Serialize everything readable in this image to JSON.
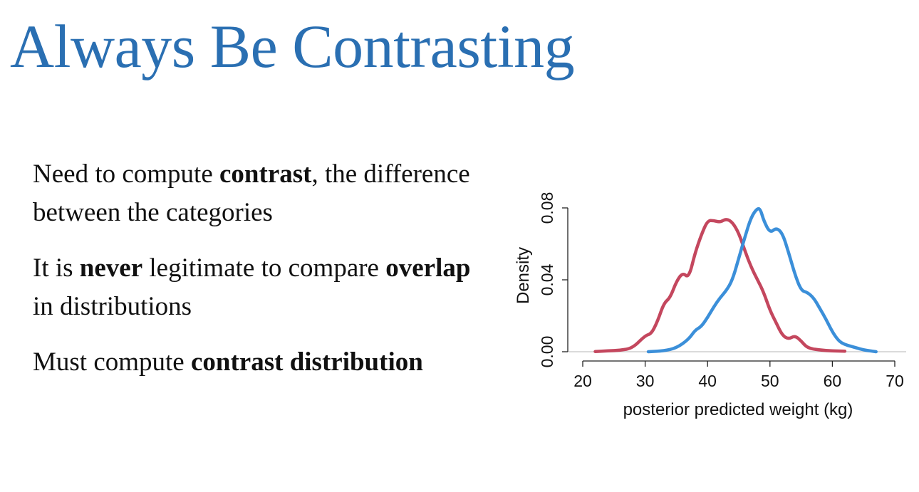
{
  "slide": {
    "title": "Always Be Contrasting",
    "title_color": "#2a6fb2",
    "bullets": [
      {
        "parts": [
          {
            "text": "Need to compute ",
            "bold": false
          },
          {
            "text": "contrast",
            "bold": true
          },
          {
            "text": ", the difference between the categories",
            "bold": false
          }
        ]
      },
      {
        "parts": [
          {
            "text": "It is ",
            "bold": false
          },
          {
            "text": "never",
            "bold": true
          },
          {
            "text": " legitimate to compare ",
            "bold": false
          },
          {
            "text": "overlap",
            "bold": true
          },
          {
            "text": " in distributions",
            "bold": false
          }
        ]
      },
      {
        "parts": [
          {
            "text": "Must compute ",
            "bold": false
          },
          {
            "text": "contrast distribution",
            "bold": true
          }
        ]
      }
    ]
  },
  "chart_data": {
    "type": "line",
    "xlabel": "posterior predicted weight (kg)",
    "ylabel": "Density",
    "xlim": [
      20,
      70
    ],
    "ylim": [
      0,
      0.08
    ],
    "x_ticks": [
      20,
      30,
      40,
      50,
      60,
      70
    ],
    "y_ticks": [
      0.0,
      0.04,
      0.08
    ],
    "x_tick_labels": [
      "20",
      "30",
      "40",
      "50",
      "60",
      "70"
    ],
    "y_tick_labels": [
      "0.00",
      "0.04",
      "0.08"
    ],
    "grid": false,
    "series": [
      {
        "color": "#c4475e",
        "points": [
          [
            22,
            0.0001
          ],
          [
            24,
            0.0005
          ],
          [
            26,
            0.0008
          ],
          [
            28,
            0.002
          ],
          [
            30,
            0.009
          ],
          [
            31,
            0.01
          ],
          [
            32,
            0.017
          ],
          [
            33,
            0.027
          ],
          [
            34,
            0.03
          ],
          [
            35,
            0.039
          ],
          [
            36,
            0.044
          ],
          [
            37,
            0.041
          ],
          [
            38,
            0.055
          ],
          [
            39,
            0.065
          ],
          [
            40,
            0.073
          ],
          [
            41,
            0.073
          ],
          [
            42,
            0.072
          ],
          [
            43,
            0.074
          ],
          [
            44,
            0.072
          ],
          [
            45,
            0.066
          ],
          [
            46,
            0.056
          ],
          [
            47,
            0.047
          ],
          [
            48,
            0.04
          ],
          [
            49,
            0.033
          ],
          [
            50,
            0.023
          ],
          [
            51,
            0.016
          ],
          [
            52,
            0.009
          ],
          [
            53,
            0.007
          ],
          [
            54,
            0.009
          ],
          [
            55,
            0.006
          ],
          [
            56,
            0.002
          ],
          [
            58,
            0.0009
          ],
          [
            60,
            0.0005
          ],
          [
            62,
            0.0003
          ]
        ]
      },
      {
        "color": "#3b8fd9",
        "points": [
          [
            30.5,
            0.0
          ],
          [
            33,
            0.0005
          ],
          [
            35,
            0.002
          ],
          [
            37,
            0.007
          ],
          [
            38,
            0.012
          ],
          [
            39,
            0.014
          ],
          [
            40,
            0.019
          ],
          [
            41,
            0.025
          ],
          [
            42,
            0.03
          ],
          [
            43,
            0.034
          ],
          [
            44,
            0.04
          ],
          [
            45,
            0.052
          ],
          [
            46,
            0.064
          ],
          [
            47,
            0.075
          ],
          [
            48,
            0.08
          ],
          [
            48.5,
            0.079
          ],
          [
            49,
            0.073
          ],
          [
            50,
            0.066
          ],
          [
            51,
            0.069
          ],
          [
            52,
            0.066
          ],
          [
            53,
            0.055
          ],
          [
            54,
            0.043
          ],
          [
            55,
            0.034
          ],
          [
            56,
            0.033
          ],
          [
            57,
            0.03
          ],
          [
            58,
            0.024
          ],
          [
            59,
            0.018
          ],
          [
            60,
            0.011
          ],
          [
            61,
            0.006
          ],
          [
            62,
            0.004
          ],
          [
            63,
            0.003
          ],
          [
            64,
            0.002
          ],
          [
            65,
            0.001
          ],
          [
            67,
            0.0
          ]
        ]
      }
    ]
  }
}
